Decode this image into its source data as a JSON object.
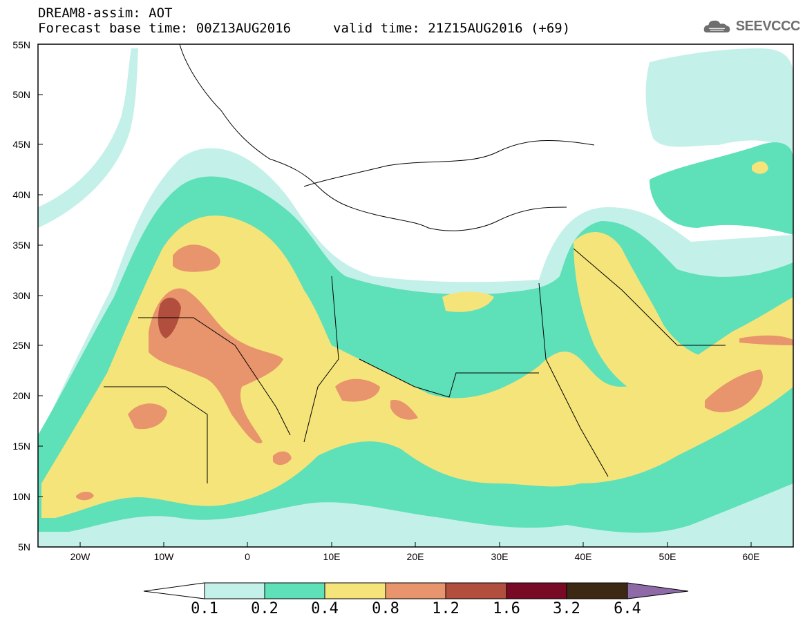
{
  "header": {
    "title": "DREAM8-assim: AOT",
    "base_time": "Forecast base time: 00Z13AUG2016",
    "valid_time": "valid time: 21Z15AUG2016 (+69)"
  },
  "logo": {
    "text": "SEEVCCC",
    "icon": "cloud-icon"
  },
  "map": {
    "lat_labels": [
      "55N",
      "50N",
      "45N",
      "40N",
      "35N",
      "30N",
      "25N",
      "20N",
      "15N",
      "10N",
      "5N"
    ],
    "lon_labels": [
      "20W",
      "10W",
      "0",
      "10E",
      "20E",
      "30E",
      "40E",
      "50E",
      "60E"
    ],
    "lat_range": [
      5,
      55
    ],
    "lon_range": [
      -25,
      65
    ],
    "field": "Aerosol Optical Thickness (dust)"
  },
  "legend": {
    "levels": [
      "0.1",
      "0.2",
      "0.4",
      "0.8",
      "1.2",
      "1.6",
      "3.2",
      "6.4"
    ],
    "colors": [
      "#ffffff",
      "#c4f0ea",
      "#5ee0b9",
      "#f5e47a",
      "#e8946c",
      "#b14e3e",
      "#780a26",
      "#3d2814",
      "#8e6aa6"
    ]
  },
  "colors": {
    "level_0_1": "#c4f0ea",
    "level_0_2": "#5ee0b9",
    "level_0_4": "#f5e47a",
    "level_0_8": "#e8946c",
    "level_1_2": "#b14e3e",
    "level_1_6": "#780a26",
    "level_3_2": "#3d2814",
    "level_6_4": "#8e6aa6"
  }
}
